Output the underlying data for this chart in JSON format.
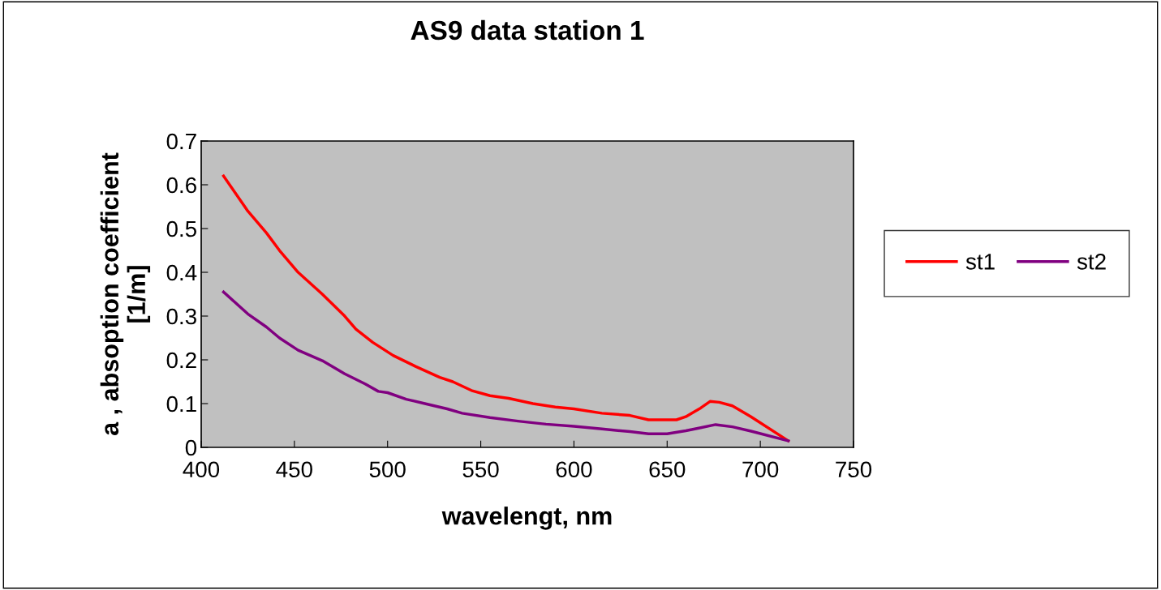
{
  "chart_data": {
    "type": "line",
    "title": "AS9 data station 1",
    "xlabel": "wavelengt, nm",
    "ylabel": "a , absoption coefficient\n[1/m]",
    "xlim": [
      400,
      750
    ],
    "xticks": [
      400,
      450,
      500,
      550,
      600,
      650,
      700,
      750
    ],
    "ylim": [
      0,
      0.7
    ],
    "yticks": [
      0,
      0.1,
      0.2,
      0.3,
      0.4,
      0.5,
      0.6,
      0.7
    ],
    "grid": false,
    "legend": "right",
    "marker": "none",
    "line_style": "solid",
    "series": [
      {
        "name": "st1",
        "color": "#ff0000",
        "x": [
          412,
          425,
          435,
          442,
          452,
          465,
          477,
          483,
          492,
          503,
          515,
          528,
          535,
          545,
          555,
          565,
          578,
          590,
          600,
          615,
          630,
          640,
          655,
          660,
          668,
          673,
          678,
          685,
          695,
          715
        ],
        "values": [
          0.62,
          0.54,
          0.49,
          0.45,
          0.4,
          0.35,
          0.3,
          0.27,
          0.24,
          0.21,
          0.185,
          0.16,
          0.15,
          0.13,
          0.118,
          0.112,
          0.1,
          0.092,
          0.088,
          0.078,
          0.073,
          0.063,
          0.063,
          0.07,
          0.09,
          0.105,
          0.103,
          0.095,
          0.07,
          0.015
        ]
      },
      {
        "name": "st2",
        "color": "#800080",
        "x": [
          412,
          425,
          435,
          442,
          452,
          465,
          477,
          488,
          495,
          500,
          510,
          520,
          532,
          540,
          555,
          570,
          585,
          600,
          615,
          630,
          640,
          650,
          660,
          667,
          676,
          685,
          695,
          715
        ],
        "values": [
          0.355,
          0.305,
          0.275,
          0.25,
          0.222,
          0.198,
          0.168,
          0.145,
          0.128,
          0.125,
          0.11,
          0.1,
          0.088,
          0.078,
          0.068,
          0.06,
          0.053,
          0.048,
          0.042,
          0.036,
          0.031,
          0.031,
          0.038,
          0.044,
          0.052,
          0.047,
          0.037,
          0.015
        ]
      }
    ]
  }
}
